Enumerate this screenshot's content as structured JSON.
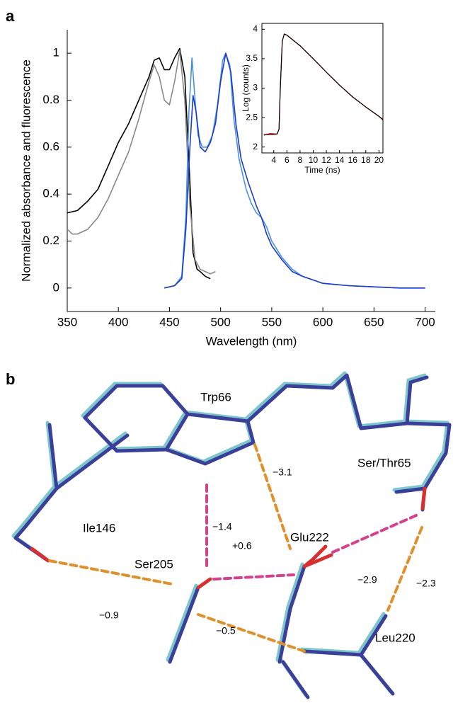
{
  "panel_labels": [
    "a",
    "b"
  ],
  "chart_data": [
    {
      "type": "line",
      "xlabel": "Wavelength (nm)",
      "ylabel": "Normalized absorbance and fluorescence",
      "xlim": [
        350,
        710
      ],
      "ylim": [
        -0.1,
        1.1
      ],
      "xticks": [
        350,
        400,
        450,
        500,
        550,
        600,
        650,
        700
      ],
      "yticks": [
        0,
        0.2,
        0.4,
        0.6,
        0.8,
        1
      ],
      "series": [
        {
          "color": "#000000",
          "x": [
            350,
            360,
            370,
            380,
            390,
            400,
            410,
            420,
            425,
            430,
            435,
            440,
            445,
            450,
            455,
            460,
            465,
            470,
            473,
            477,
            480,
            485,
            490
          ],
          "values": [
            0.32,
            0.33,
            0.37,
            0.42,
            0.52,
            0.62,
            0.7,
            0.8,
            0.85,
            0.9,
            0.97,
            0.98,
            0.93,
            0.93,
            0.98,
            1.02,
            0.9,
            0.45,
            0.15,
            0.08,
            0.07,
            0.05,
            0.04
          ]
        },
        {
          "color": "#888888",
          "x": [
            350,
            355,
            360,
            370,
            380,
            390,
            400,
            410,
            420,
            425,
            430,
            435,
            440,
            445,
            450,
            455,
            460,
            465,
            470,
            475,
            480,
            485,
            490,
            495
          ],
          "values": [
            0.25,
            0.23,
            0.23,
            0.25,
            0.3,
            0.38,
            0.48,
            0.58,
            0.72,
            0.8,
            0.88,
            0.95,
            0.9,
            0.8,
            0.78,
            0.88,
            1.01,
            0.8,
            0.35,
            0.12,
            0.08,
            0.07,
            0.06,
            0.07
          ]
        },
        {
          "color": "#4a90e2",
          "x": [
            445,
            455,
            462,
            466,
            469,
            472,
            475,
            478,
            482,
            487,
            492,
            497,
            502,
            505,
            509,
            513,
            518,
            525,
            530,
            535,
            540,
            545,
            550,
            560,
            570,
            580,
            600,
            625,
            650,
            675,
            700
          ],
          "values": [
            0,
            0.01,
            0.05,
            0.3,
            0.75,
            0.98,
            0.8,
            0.65,
            0.6,
            0.6,
            0.65,
            0.78,
            0.97,
            1.0,
            0.95,
            0.72,
            0.55,
            0.42,
            0.36,
            0.32,
            0.3,
            0.26,
            0.2,
            0.13,
            0.08,
            0.05,
            0.02,
            0.01,
            0.005,
            0,
            0
          ]
        },
        {
          "color": "#1a3cc8",
          "x": [
            445,
            455,
            462,
            466,
            470,
            473,
            476,
            480,
            485,
            490,
            495,
            500,
            505,
            510,
            515,
            520,
            527,
            535,
            540,
            545,
            550,
            560,
            570,
            580,
            600,
            625,
            650,
            675,
            700
          ],
          "values": [
            0,
            0.01,
            0.04,
            0.25,
            0.6,
            0.82,
            0.75,
            0.6,
            0.58,
            0.62,
            0.7,
            0.88,
            1.0,
            0.92,
            0.7,
            0.55,
            0.45,
            0.35,
            0.3,
            0.23,
            0.18,
            0.12,
            0.07,
            0.05,
            0.02,
            0.01,
            0.005,
            0,
            0
          ]
        }
      ]
    },
    {
      "type": "line",
      "xlabel": "Time (ns)",
      "ylabel": "Log (counts)",
      "xlim": [
        2.2,
        20.6
      ],
      "ylim": [
        1.9,
        4.1
      ],
      "xticks": [
        4,
        6,
        8,
        10,
        12,
        14,
        16,
        18,
        20
      ],
      "yticks": [
        2,
        2.5,
        3,
        3.5,
        4
      ],
      "series": [
        {
          "color": "#ff0000",
          "x": [
            2.5,
            3.5,
            4.5,
            4.8,
            5.0,
            5.3,
            5.6,
            6,
            7,
            8,
            10,
            12,
            14,
            16,
            18,
            20,
            20.6
          ],
          "values": [
            2.2,
            2.23,
            2.22,
            2.3,
            3.0,
            3.8,
            3.92,
            3.9,
            3.81,
            3.72,
            3.5,
            3.27,
            3.05,
            2.85,
            2.68,
            2.52,
            2.47
          ]
        },
        {
          "color": "#000000",
          "x": [
            2.5,
            3.5,
            4.5,
            4.8,
            5.0,
            5.3,
            5.6,
            6,
            7,
            8,
            10,
            12,
            14,
            16,
            18,
            20,
            20.6
          ],
          "values": [
            2.21,
            2.21,
            2.22,
            2.3,
            3.0,
            3.8,
            3.92,
            3.9,
            3.81,
            3.72,
            3.5,
            3.27,
            3.05,
            2.85,
            2.68,
            2.52,
            2.46
          ]
        }
      ]
    }
  ],
  "structure": {
    "residues": [
      "Trp66",
      "Ser/Thr65",
      "Ile146",
      "Glu222",
      "Ser205",
      "Leu220"
    ],
    "distances": [
      "−3.1",
      "−1.4",
      "+0.6",
      "−2.9",
      "−2.3",
      "−0.9",
      "−0.5"
    ]
  }
}
